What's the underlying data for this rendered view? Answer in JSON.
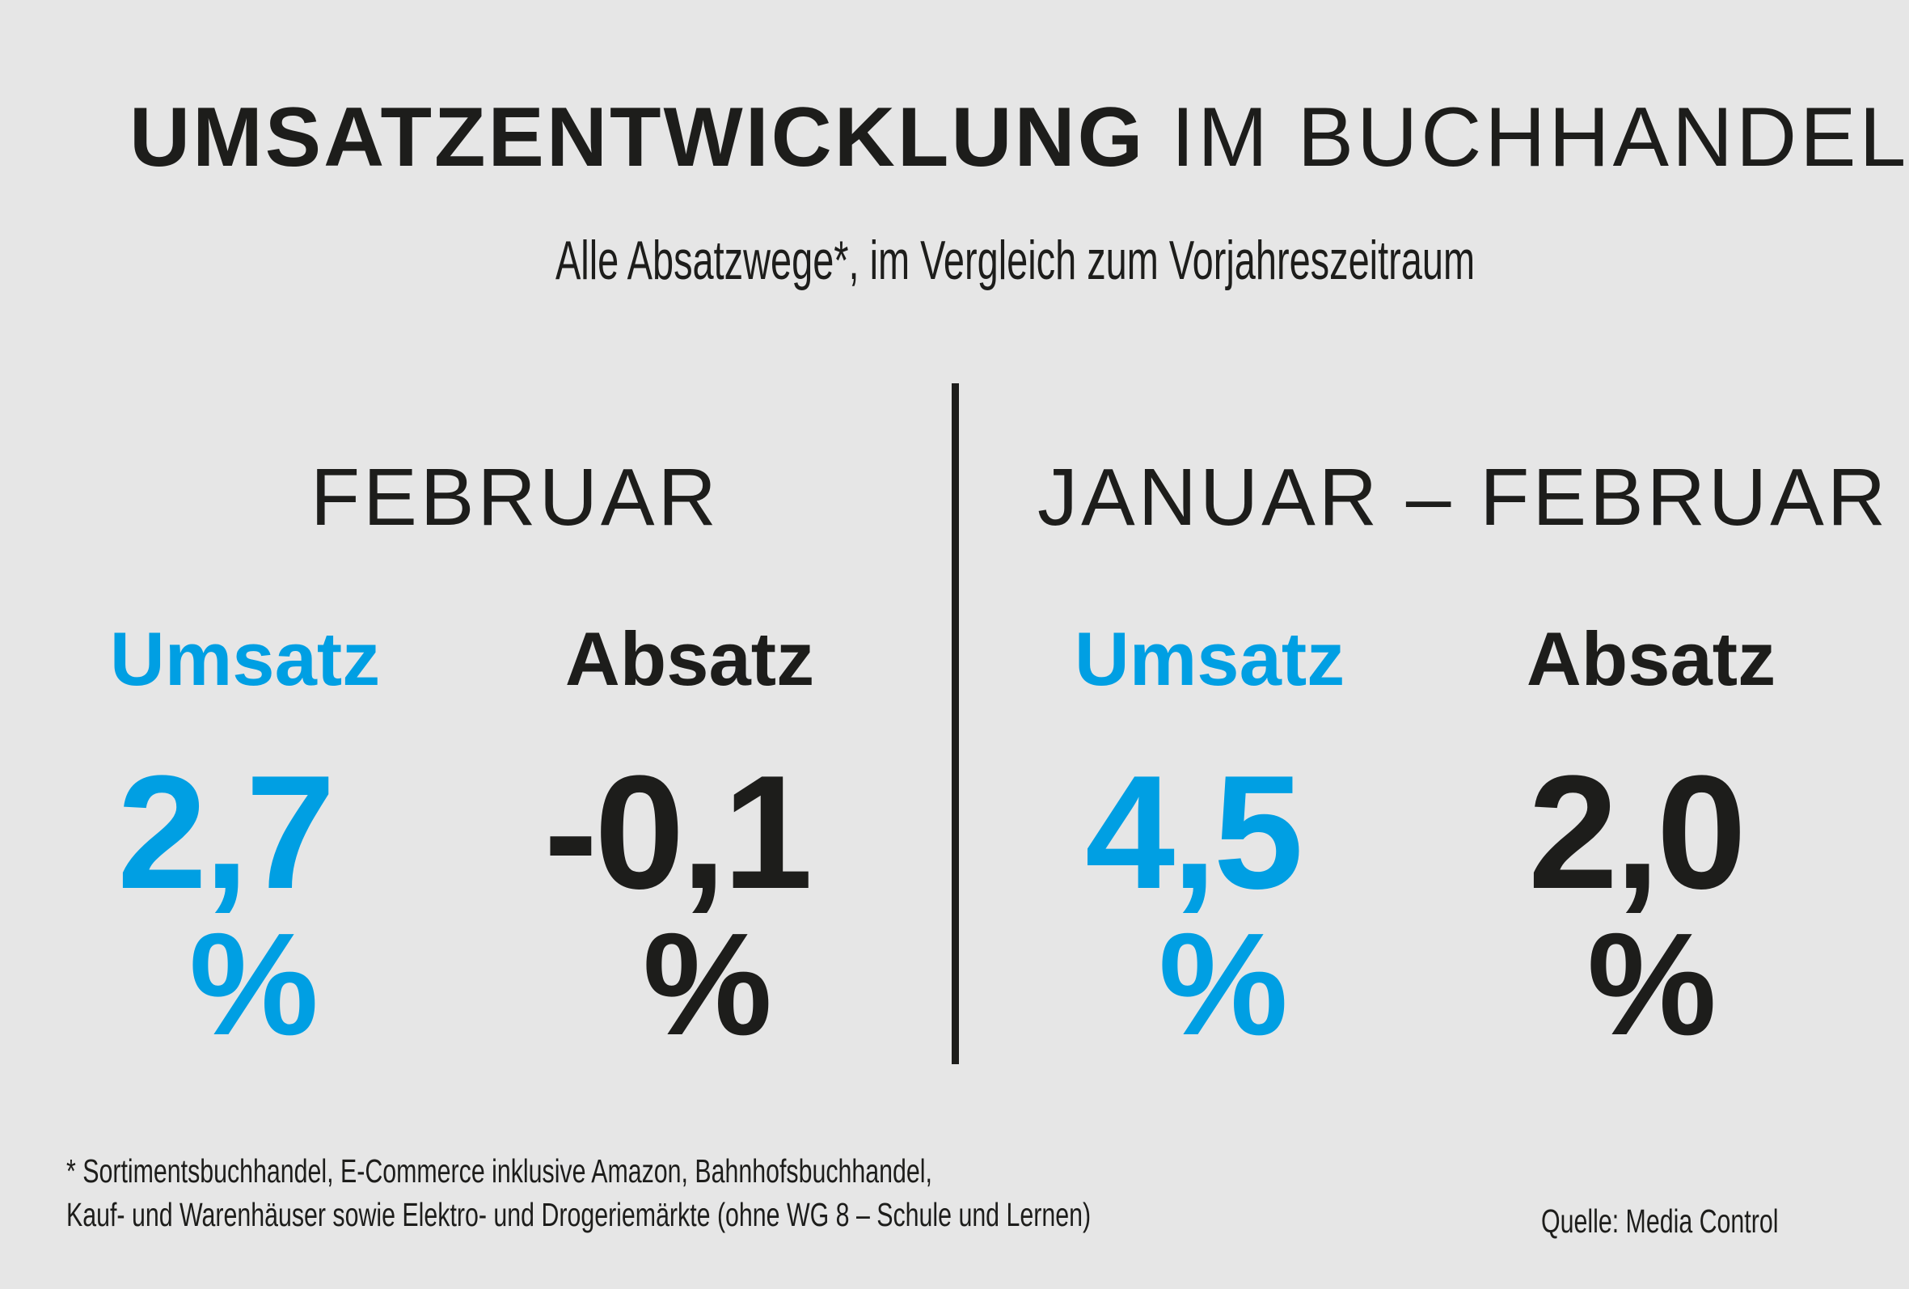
{
  "title": {
    "bold": "UMSATZENTWICKLUNG",
    "light": "IM BUCHHANDEL"
  },
  "subtitle": "Alle Absatzwege*, im Vergleich zum Vorjahreszeitraum",
  "colors": {
    "accent": "#009fe3",
    "dark": "#1d1d1b",
    "background": "#e6e6e6"
  },
  "chart_data": {
    "type": "table",
    "title": "UMSATZENTWICKLUNG IM BUCHHANDEL",
    "periods": [
      {
        "label": "FEBRUAR",
        "metrics": [
          {
            "name": "Umsatz",
            "value": 2.7,
            "display": "2,7",
            "unit": "%"
          },
          {
            "name": "Absatz",
            "value": -0.1,
            "display": "-0,1",
            "unit": "%"
          }
        ]
      },
      {
        "label": "JANUAR – FEBRUAR",
        "metrics": [
          {
            "name": "Umsatz",
            "value": 4.5,
            "display": "4,5",
            "unit": "%"
          },
          {
            "name": "Absatz",
            "value": 2.0,
            "display": "2,0",
            "unit": "%"
          }
        ]
      }
    ]
  },
  "footnote": {
    "line1": "* Sortimentsbuchhandel, E-Commerce inklusive Amazon, Bahnhofsbuchhandel,",
    "line2": "Kauf- und Warenhäuser sowie Elektro- und Drogeriemärkte (ohne WG 8 – Schule und Lernen)"
  },
  "source": "Quelle: Media Control"
}
